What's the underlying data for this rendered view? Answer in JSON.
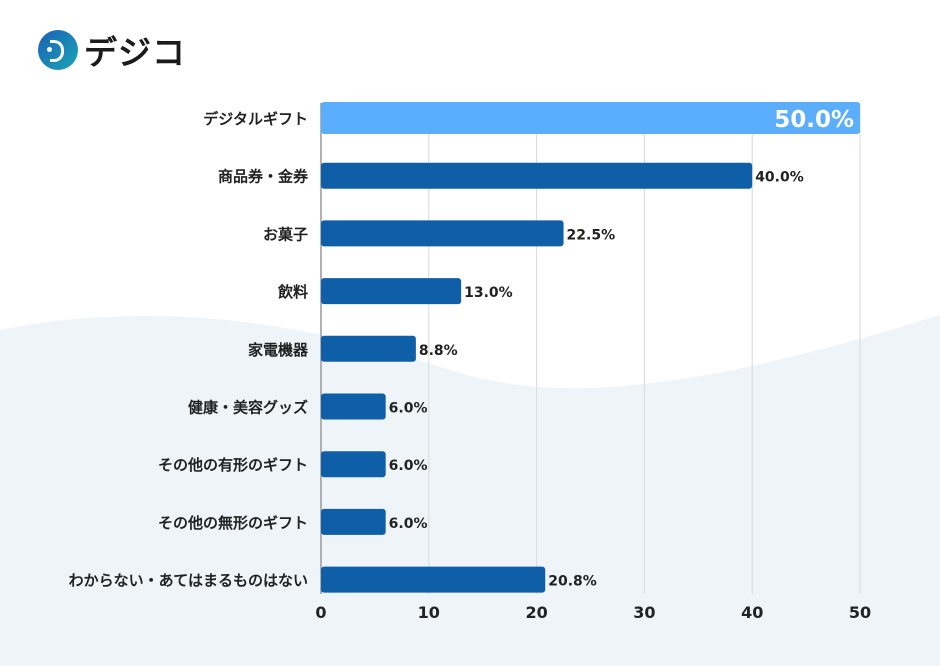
{
  "logo": {
    "text": "デジコ"
  },
  "chart_data": {
    "type": "bar",
    "orientation": "horizontal",
    "categories": [
      "デジタルギフト",
      "商品券・金券",
      "お菓子",
      "飲料",
      "家電機器",
      "健康・美容グッズ",
      "その他の有形のギフト",
      "その他の無形のギフト",
      "わからない・あてはまるものはない"
    ],
    "values": [
      50.0,
      40.0,
      22.5,
      13.0,
      8.8,
      6.0,
      6.0,
      6.0,
      20.8
    ],
    "value_labels": [
      "50.0%",
      "40.0%",
      "22.5%",
      "13.0%",
      "8.8%",
      "6.0%",
      "6.0%",
      "6.0%",
      "20.8%"
    ],
    "highlight_index": 0,
    "xlim": [
      0,
      50
    ],
    "xticks": [
      0,
      10,
      20,
      30,
      40,
      50
    ],
    "grid": true,
    "colors": {
      "highlight": "#5aaefc",
      "bar": "#0e5ea8",
      "grid": "#d9d9d9",
      "background_wave": "#eef4f8"
    }
  }
}
